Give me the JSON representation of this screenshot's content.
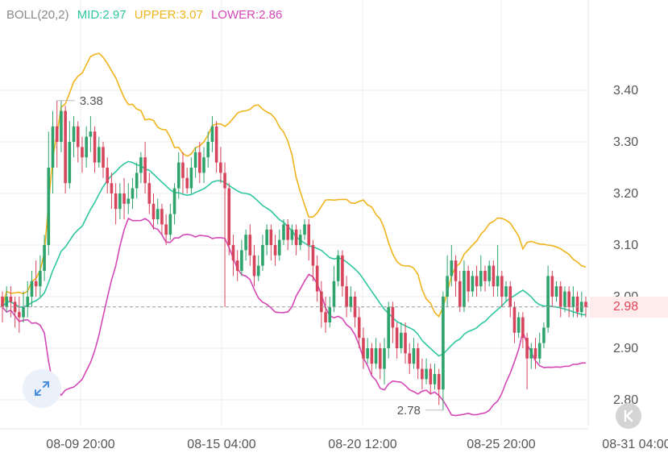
{
  "indicator": {
    "name": "BOLL(20,2)",
    "mid": "MID:2.97",
    "upper": "UPPER:3.07",
    "lower": "LOWER:2.86"
  },
  "colors": {
    "name": "#8a8a8a",
    "mid": "#2ec7a0",
    "upper": "#f0b41c",
    "lower": "#d447b6",
    "up_candle": "#2ea36b",
    "down_candle": "#d6455c",
    "grid": "#ececec",
    "axis_text": "#555555",
    "current_price": "#e0475c"
  },
  "current_price": "2.98",
  "icons": {
    "expand": "expand-arrows-icon",
    "back": "chevron-left-icon"
  },
  "chart_data": {
    "type": "candlestick",
    "ylim": [
      2.76,
      3.5
    ],
    "y_ticks": [
      "3.40",
      "3.30",
      "3.20",
      "3.10",
      "3.00",
      "2.90",
      "2.80"
    ],
    "x_ticks": [
      "08-09 20:00",
      "08-15 04:00",
      "08-20 12:00",
      "08-25 20:00",
      "08-31 04:00"
    ],
    "annotations": [
      {
        "text": "3.38",
        "price": 3.38,
        "label": "high"
      },
      {
        "text": "2.78",
        "price": 2.78,
        "label": "low"
      }
    ],
    "current_price": 2.98,
    "candles": [
      [
        3.0,
        2.98,
        2.95,
        3.01
      ],
      [
        2.98,
        3.0,
        2.97,
        3.02
      ],
      [
        3.0,
        2.99,
        2.96,
        3.02
      ],
      [
        2.99,
        2.97,
        2.94,
        3.0
      ],
      [
        2.97,
        2.96,
        2.93,
        3.0
      ],
      [
        2.96,
        2.98,
        2.95,
        3.01
      ],
      [
        2.98,
        3.0,
        2.96,
        3.03
      ],
      [
        3.0,
        3.03,
        2.98,
        3.05
      ],
      [
        3.03,
        3.02,
        3.0,
        3.07
      ],
      [
        3.02,
        3.05,
        3.0,
        3.08
      ],
      [
        3.05,
        3.1,
        3.03,
        3.12
      ],
      [
        3.1,
        3.25,
        3.08,
        3.32
      ],
      [
        3.25,
        3.33,
        3.2,
        3.36
      ],
      [
        3.33,
        3.3,
        3.25,
        3.38
      ],
      [
        3.3,
        3.36,
        3.28,
        3.38
      ],
      [
        3.36,
        3.22,
        3.2,
        3.37
      ],
      [
        3.22,
        3.3,
        3.21,
        3.34
      ],
      [
        3.3,
        3.33,
        3.27,
        3.35
      ],
      [
        3.33,
        3.29,
        3.26,
        3.34
      ],
      [
        3.29,
        3.27,
        3.24,
        3.31
      ],
      [
        3.27,
        3.31,
        3.25,
        3.33
      ],
      [
        3.31,
        3.32,
        3.28,
        3.35
      ],
      [
        3.32,
        3.26,
        3.24,
        3.33
      ],
      [
        3.26,
        3.29,
        3.25,
        3.31
      ],
      [
        3.29,
        3.25,
        3.23,
        3.3
      ],
      [
        3.25,
        3.22,
        3.2,
        3.27
      ],
      [
        3.22,
        3.2,
        3.17,
        3.24
      ],
      [
        3.2,
        3.17,
        3.14,
        3.22
      ],
      [
        3.17,
        3.2,
        3.15,
        3.22
      ],
      [
        3.2,
        3.18,
        3.15,
        3.23
      ],
      [
        3.18,
        3.19,
        3.16,
        3.22
      ],
      [
        3.19,
        3.21,
        3.17,
        3.23
      ],
      [
        3.21,
        3.24,
        3.19,
        3.26
      ],
      [
        3.24,
        3.27,
        3.22,
        3.28
      ],
      [
        3.27,
        3.22,
        3.2,
        3.3
      ],
      [
        3.22,
        3.18,
        3.16,
        3.24
      ],
      [
        3.18,
        3.15,
        3.13,
        3.2
      ],
      [
        3.15,
        3.17,
        3.14,
        3.19
      ],
      [
        3.17,
        3.14,
        3.12,
        3.18
      ],
      [
        3.14,
        3.12,
        3.1,
        3.16
      ],
      [
        3.12,
        3.16,
        3.11,
        3.18
      ],
      [
        3.16,
        3.21,
        3.14,
        3.22
      ],
      [
        3.21,
        3.26,
        3.19,
        3.28
      ],
      [
        3.26,
        3.23,
        3.2,
        3.28
      ],
      [
        3.23,
        3.21,
        3.2,
        3.25
      ],
      [
        3.21,
        3.25,
        3.2,
        3.27
      ],
      [
        3.25,
        3.28,
        3.23,
        3.29
      ],
      [
        3.28,
        3.24,
        3.22,
        3.3
      ],
      [
        3.24,
        3.27,
        3.22,
        3.29
      ],
      [
        3.27,
        3.3,
        3.25,
        3.32
      ],
      [
        3.3,
        3.33,
        3.28,
        3.35
      ],
      [
        3.33,
        3.26,
        3.24,
        3.34
      ],
      [
        3.26,
        3.24,
        3.22,
        3.29
      ],
      [
        3.24,
        3.21,
        2.98,
        3.26
      ],
      [
        3.21,
        3.1,
        3.08,
        3.22
      ],
      [
        3.1,
        3.07,
        3.04,
        3.12
      ],
      [
        3.07,
        3.05,
        3.03,
        3.09
      ],
      [
        3.05,
        3.09,
        3.04,
        3.11
      ],
      [
        3.09,
        3.12,
        3.07,
        3.13
      ],
      [
        3.12,
        3.08,
        3.06,
        3.14
      ],
      [
        3.08,
        3.04,
        3.02,
        3.1
      ],
      [
        3.04,
        3.06,
        3.03,
        3.08
      ],
      [
        3.06,
        3.1,
        3.05,
        3.12
      ],
      [
        3.1,
        3.13,
        3.08,
        3.14
      ],
      [
        3.13,
        3.1,
        3.07,
        3.14
      ],
      [
        3.1,
        3.08,
        3.06,
        3.12
      ],
      [
        3.08,
        3.11,
        3.07,
        3.13
      ],
      [
        3.11,
        3.14,
        3.1,
        3.15
      ],
      [
        3.14,
        3.11,
        3.09,
        3.15
      ],
      [
        3.11,
        3.13,
        3.1,
        3.14
      ],
      [
        3.13,
        3.1,
        3.08,
        3.14
      ],
      [
        3.1,
        3.12,
        3.09,
        3.13
      ],
      [
        3.12,
        3.14,
        3.11,
        3.15
      ],
      [
        3.14,
        3.1,
        3.07,
        3.15
      ],
      [
        3.1,
        3.06,
        3.03,
        3.11
      ],
      [
        3.06,
        3.01,
        2.99,
        3.08
      ],
      [
        3.01,
        2.97,
        2.94,
        3.03
      ],
      [
        2.97,
        2.95,
        2.93,
        3.0
      ],
      [
        2.95,
        2.98,
        2.94,
        3.0
      ],
      [
        2.98,
        3.03,
        2.97,
        3.06
      ],
      [
        3.03,
        3.08,
        3.02,
        3.09
      ],
      [
        3.08,
        3.02,
        3.0,
        3.09
      ],
      [
        3.02,
        2.98,
        2.96,
        3.04
      ],
      [
        2.98,
        3.0,
        2.97,
        3.02
      ],
      [
        3.0,
        2.96,
        2.94,
        3.01
      ],
      [
        2.96,
        2.92,
        2.9,
        2.98
      ],
      [
        2.92,
        2.88,
        2.86,
        2.94
      ],
      [
        2.88,
        2.9,
        2.87,
        2.92
      ],
      [
        2.9,
        2.87,
        2.85,
        2.91
      ],
      [
        2.87,
        2.9,
        2.86,
        2.92
      ],
      [
        2.9,
        2.86,
        2.84,
        2.91
      ],
      [
        2.86,
        2.9,
        2.83,
        2.92
      ],
      [
        2.9,
        2.98,
        2.88,
        2.99
      ],
      [
        2.98,
        2.94,
        2.91,
        2.99
      ],
      [
        2.94,
        2.9,
        2.88,
        2.95
      ],
      [
        2.9,
        2.93,
        2.89,
        2.95
      ],
      [
        2.93,
        2.89,
        2.87,
        2.95
      ],
      [
        2.89,
        2.87,
        2.85,
        2.91
      ],
      [
        2.87,
        2.9,
        2.86,
        2.92
      ],
      [
        2.9,
        2.86,
        2.84,
        2.91
      ],
      [
        2.86,
        2.84,
        2.82,
        2.88
      ],
      [
        2.84,
        2.86,
        2.83,
        2.88
      ],
      [
        2.86,
        2.83,
        2.81,
        2.87
      ],
      [
        2.83,
        2.85,
        2.82,
        2.87
      ],
      [
        2.85,
        2.82,
        2.79,
        2.86
      ],
      [
        2.82,
        3.0,
        2.78,
        3.01
      ],
      [
        3.0,
        3.04,
        2.98,
        3.08
      ],
      [
        3.04,
        3.07,
        3.02,
        3.1
      ],
      [
        3.07,
        3.03,
        3.0,
        3.08
      ],
      [
        3.03,
        2.98,
        2.97,
        3.05
      ],
      [
        2.98,
        3.05,
        2.97,
        3.07
      ],
      [
        3.05,
        3.01,
        2.99,
        3.06
      ],
      [
        3.01,
        3.04,
        3.0,
        3.05
      ],
      [
        3.04,
        3.02,
        3.0,
        3.06
      ],
      [
        3.02,
        3.05,
        3.01,
        3.08
      ],
      [
        3.05,
        3.03,
        3.01,
        3.06
      ],
      [
        3.03,
        3.06,
        3.02,
        3.07
      ],
      [
        3.06,
        3.02,
        3.0,
        3.07
      ],
      [
        3.02,
        3.04,
        3.0,
        3.1
      ],
      [
        3.04,
        3.0,
        2.98,
        3.05
      ],
      [
        3.0,
        3.02,
        2.99,
        3.03
      ],
      [
        3.02,
        2.98,
        2.96,
        3.03
      ],
      [
        2.98,
        2.93,
        2.91,
        2.99
      ],
      [
        2.93,
        2.96,
        2.92,
        2.97
      ],
      [
        2.96,
        2.92,
        2.9,
        2.97
      ],
      [
        2.92,
        2.88,
        2.82,
        2.93
      ],
      [
        2.88,
        2.9,
        2.86,
        2.91
      ],
      [
        2.9,
        2.88,
        2.86,
        2.92
      ],
      [
        2.88,
        2.91,
        2.87,
        2.93
      ],
      [
        2.91,
        2.94,
        2.9,
        2.95
      ],
      [
        2.94,
        3.04,
        2.93,
        3.06
      ],
      [
        3.04,
        3.0,
        2.98,
        3.05
      ],
      [
        3.0,
        3.02,
        2.99,
        3.03
      ],
      [
        3.02,
        2.98,
        2.96,
        3.03
      ],
      [
        2.98,
        3.01,
        2.97,
        3.02
      ],
      [
        3.01,
        2.98,
        2.96,
        3.02
      ],
      [
        2.98,
        3.0,
        2.96,
        3.02
      ],
      [
        3.0,
        2.97,
        2.96,
        3.01
      ],
      [
        2.97,
        2.99,
        2.96,
        3.01
      ],
      [
        2.99,
        2.98,
        2.96,
        3.0
      ]
    ]
  }
}
